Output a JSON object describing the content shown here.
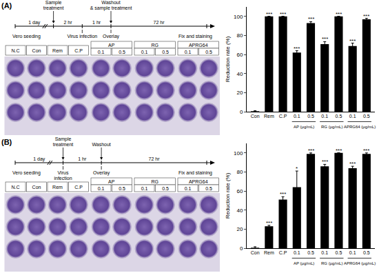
{
  "panels": [
    {
      "label": "(A)",
      "timeline": {
        "points": [
          {
            "above": null,
            "below": [
              "Vero seeding"
            ]
          },
          {
            "above": [
              "Sample",
              "treatment"
            ],
            "below": null
          },
          {
            "above": null,
            "below": [
              "Virus infection"
            ]
          },
          {
            "above": [
              "Washout",
              "& sample treatment"
            ],
            "below": [
              "Overlay"
            ]
          },
          {
            "above": null,
            "below": [
              "Fix and staining"
            ]
          }
        ],
        "intervals": [
          "1 day",
          "2 hr",
          "1 hr",
          "72 hr"
        ]
      },
      "plate": {
        "columns": [
          {
            "group": null,
            "label": "N.C"
          },
          {
            "group": null,
            "label": "Con"
          },
          {
            "group": null,
            "label": "Rem"
          },
          {
            "group": null,
            "label": "C.P"
          },
          {
            "group": "AP",
            "label": "0.1"
          },
          {
            "group": "AP",
            "label": "0.5"
          },
          {
            "group": "RG",
            "label": "0.1"
          },
          {
            "group": "RG",
            "label": "0.5"
          },
          {
            "group": "APRG64",
            "label": "0.1"
          },
          {
            "group": "APRG64",
            "label": "0.5"
          }
        ]
      }
    },
    {
      "label": "(B)",
      "timeline": {
        "points": [
          {
            "above": null,
            "below": [
              "Vero seeding"
            ]
          },
          {
            "above": [
              "Sample",
              "treatment"
            ],
            "below": [
              "Virus",
              "infection"
            ]
          },
          {
            "above": [
              "Washout"
            ],
            "below": [
              "Overlay"
            ]
          },
          {
            "above": null,
            "below": [
              "Fix and staining"
            ]
          }
        ],
        "intervals": [
          "1 day",
          "1 hr",
          "72 hr"
        ]
      },
      "plate": {
        "columns": [
          {
            "group": null,
            "label": "N.C"
          },
          {
            "group": null,
            "label": "Con"
          },
          {
            "group": null,
            "label": "Rem"
          },
          {
            "group": null,
            "label": "C.P"
          },
          {
            "group": "AP",
            "label": "0.1"
          },
          {
            "group": "AP",
            "label": "0.5"
          },
          {
            "group": "RG",
            "label": "0.1"
          },
          {
            "group": "RG",
            "label": "0.5"
          },
          {
            "group": "APRG64",
            "label": "0.1"
          },
          {
            "group": "APRG64",
            "label": "0.5"
          }
        ]
      }
    }
  ],
  "chart_data": [
    {
      "type": "bar",
      "y_label": "Reduction rate (%)",
      "categories": [
        "Con",
        "Rem",
        "C.P",
        "0.1",
        "0.5",
        "0.1",
        "0.5",
        "0.1",
        "0.5"
      ],
      "category_groups": [
        null,
        null,
        null,
        "AP (μg/mL)",
        "AP (μg/mL)",
        "RG (μg/mL)",
        "RG (μg/mL)",
        "APRG64 (μg/mL)",
        "APRG64 (μg/mL)"
      ],
      "values": [
        0.5,
        100,
        100,
        62,
        93,
        71,
        100,
        69,
        97
      ],
      "errors": [
        0.5,
        0,
        0,
        2,
        1.5,
        2.5,
        0,
        3,
        1
      ],
      "significance": [
        null,
        "***",
        "***",
        "***",
        "***",
        "***",
        "***",
        "***",
        "***"
      ],
      "color": "#000000",
      "ylim": [
        0,
        110
      ],
      "yticks": [
        0,
        20,
        40,
        60,
        80,
        100
      ],
      "grid": false
    },
    {
      "type": "bar",
      "y_label": "Reduction rate (%)",
      "categories": [
        "Con",
        "Rem",
        "C.P",
        "0.1",
        "0.5",
        "0.1",
        "0.5",
        "0.1",
        "0.5"
      ],
      "category_groups": [
        null,
        null,
        null,
        "AP (μg/mL)",
        "AP (μg/mL)",
        "RG (μg/mL)",
        "RG (μg/mL)",
        "APRG64 (μg/mL)",
        "APRG64 (μg/mL)"
      ],
      "values": [
        0.5,
        23,
        51,
        64,
        99,
        86,
        100,
        84,
        99
      ],
      "errors": [
        1,
        1,
        3,
        17,
        1,
        2,
        0,
        2,
        1
      ],
      "significance": [
        null,
        "***",
        "***",
        "*",
        "***",
        "***",
        "***",
        "***",
        "***"
      ],
      "color": "#000000",
      "ylim": [
        0,
        110
      ],
      "yticks": [
        0,
        20,
        40,
        60,
        80,
        100
      ],
      "grid": false
    }
  ]
}
